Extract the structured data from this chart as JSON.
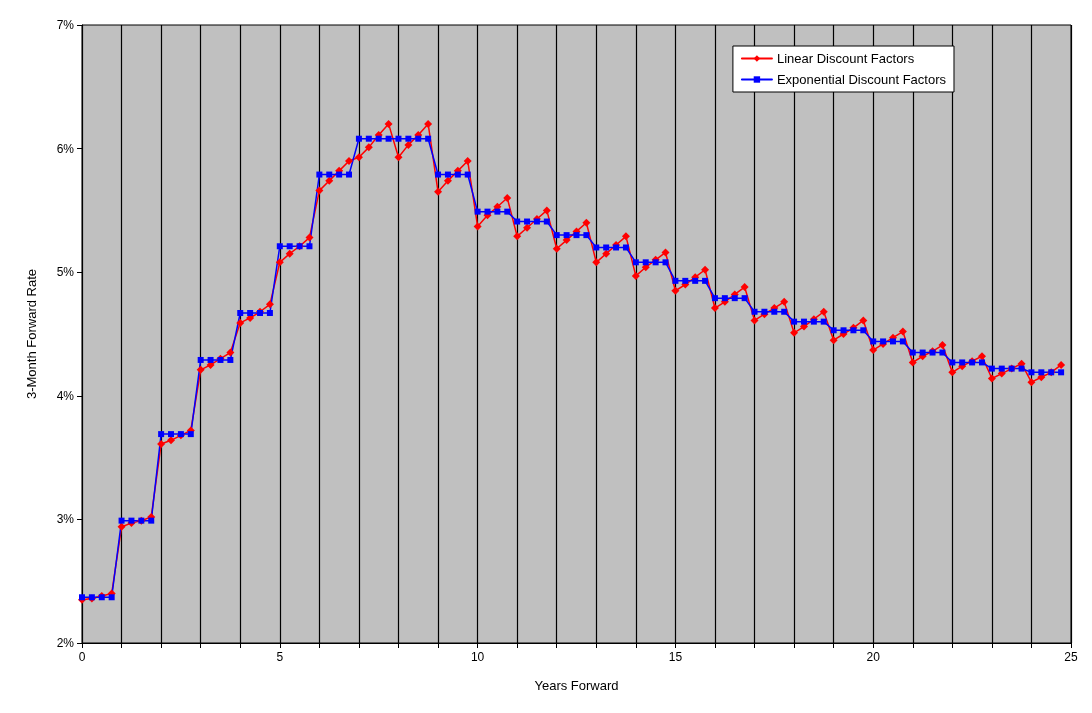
{
  "chart_data": {
    "type": "line",
    "xlabel": "Years Forward",
    "ylabel": "3-Month Forward Rate",
    "x": [
      0,
      0.25,
      0.5,
      0.75,
      1,
      1.25,
      1.5,
      1.75,
      2,
      2.25,
      2.5,
      2.75,
      3,
      3.25,
      3.5,
      3.75,
      4,
      4.25,
      4.5,
      4.75,
      5,
      5.25,
      5.5,
      5.75,
      6,
      6.25,
      6.5,
      6.75,
      7,
      7.25,
      7.5,
      7.75,
      8,
      8.25,
      8.5,
      8.75,
      9,
      9.25,
      9.5,
      9.75,
      10,
      10.25,
      10.5,
      10.75,
      11,
      11.25,
      11.5,
      11.75,
      12,
      12.25,
      12.5,
      12.75,
      13,
      13.25,
      13.5,
      13.75,
      14,
      14.25,
      14.5,
      14.75,
      15,
      15.25,
      15.5,
      15.75,
      16,
      16.25,
      16.5,
      16.75,
      17,
      17.25,
      17.5,
      17.75,
      18,
      18.25,
      18.5,
      18.75,
      19,
      19.25,
      19.5,
      19.75,
      20,
      20.25,
      20.5,
      20.75,
      21,
      21.25,
      21.5,
      21.75,
      22,
      22.25,
      22.5,
      22.75,
      23,
      23.25,
      23.5,
      23.75,
      24,
      24.25,
      24.5,
      24.75
    ],
    "series": [
      {
        "name": "Linear Discount Factors",
        "color": "#ff0000",
        "marker": "diamond",
        "values": [
          2.35,
          2.36,
          2.38,
          2.4,
          2.94,
          2.97,
          2.99,
          3.02,
          3.61,
          3.64,
          3.68,
          3.72,
          4.21,
          4.25,
          4.3,
          4.35,
          4.59,
          4.63,
          4.68,
          4.74,
          5.08,
          5.15,
          5.21,
          5.28,
          5.66,
          5.74,
          5.82,
          5.9,
          5.93,
          6.01,
          6.11,
          6.2,
          5.93,
          6.03,
          6.11,
          6.2,
          5.65,
          5.74,
          5.82,
          5.9,
          5.37,
          5.46,
          5.53,
          5.6,
          5.29,
          5.36,
          5.43,
          5.5,
          5.19,
          5.26,
          5.33,
          5.4,
          5.08,
          5.15,
          5.22,
          5.29,
          4.97,
          5.04,
          5.1,
          5.16,
          4.85,
          4.9,
          4.96,
          5.02,
          4.71,
          4.76,
          4.82,
          4.88,
          4.61,
          4.66,
          4.71,
          4.76,
          4.51,
          4.56,
          4.62,
          4.68,
          4.45,
          4.5,
          4.55,
          4.61,
          4.37,
          4.42,
          4.47,
          4.52,
          4.27,
          4.32,
          4.36,
          4.41,
          4.19,
          4.24,
          4.28,
          4.32,
          4.14,
          4.18,
          4.22,
          4.26,
          4.11,
          4.15,
          4.19,
          4.25
        ]
      },
      {
        "name": "Exponential Discount Factors",
        "color": "#0000ff",
        "marker": "square",
        "values": [
          2.37,
          2.37,
          2.37,
          2.37,
          2.99,
          2.99,
          2.99,
          2.99,
          3.69,
          3.69,
          3.69,
          3.69,
          4.29,
          4.29,
          4.29,
          4.29,
          4.67,
          4.67,
          4.67,
          4.67,
          5.21,
          5.21,
          5.21,
          5.21,
          5.79,
          5.79,
          5.79,
          5.79,
          6.08,
          6.08,
          6.08,
          6.08,
          6.08,
          6.08,
          6.08,
          6.08,
          5.79,
          5.79,
          5.79,
          5.79,
          5.49,
          5.49,
          5.49,
          5.49,
          5.41,
          5.41,
          5.41,
          5.41,
          5.3,
          5.3,
          5.3,
          5.3,
          5.2,
          5.2,
          5.2,
          5.2,
          5.08,
          5.08,
          5.08,
          5.08,
          4.93,
          4.93,
          4.93,
          4.93,
          4.79,
          4.79,
          4.79,
          4.79,
          4.68,
          4.68,
          4.68,
          4.68,
          4.6,
          4.6,
          4.6,
          4.6,
          4.53,
          4.53,
          4.53,
          4.53,
          4.44,
          4.44,
          4.44,
          4.44,
          4.35,
          4.35,
          4.35,
          4.35,
          4.27,
          4.27,
          4.27,
          4.27,
          4.22,
          4.22,
          4.22,
          4.22,
          4.19,
          4.19,
          4.19,
          4.19
        ]
      }
    ],
    "xlim": [
      0,
      25
    ],
    "xticks": [
      0,
      {
        "value": 1,
        "label": null
      },
      {
        "value": 2,
        "label": null
      },
      {
        "value": 3,
        "label": null
      },
      {
        "value": 4,
        "label": null
      },
      5,
      {
        "value": 6,
        "label": null
      },
      {
        "value": 7,
        "label": null
      },
      {
        "value": 8,
        "label": null
      },
      {
        "value": 9,
        "label": null
      },
      10,
      {
        "value": 11,
        "label": null
      },
      {
        "value": 12,
        "label": null
      },
      {
        "value": 13,
        "label": null
      },
      {
        "value": 14,
        "label": null
      },
      15,
      {
        "value": 16,
        "label": null
      },
      {
        "value": 17,
        "label": null
      },
      {
        "value": 18,
        "label": null
      },
      {
        "value": 19,
        "label": null
      },
      20,
      {
        "value": 21,
        "label": null
      },
      {
        "value": 22,
        "label": null
      },
      {
        "value": 23,
        "label": null
      },
      {
        "value": 24,
        "label": null
      },
      25
    ],
    "ylim": [
      2,
      7
    ],
    "yticks": [
      {
        "value": 2,
        "label": "2%"
      },
      {
        "value": 3,
        "label": "3%"
      },
      {
        "value": 4,
        "label": "4%"
      },
      {
        "value": 5,
        "label": "5%"
      },
      {
        "value": 6,
        "label": "6%"
      },
      {
        "value": 7,
        "label": "7%"
      }
    ],
    "grid": "x",
    "legend": "top right",
    "line_style": "solid"
  }
}
